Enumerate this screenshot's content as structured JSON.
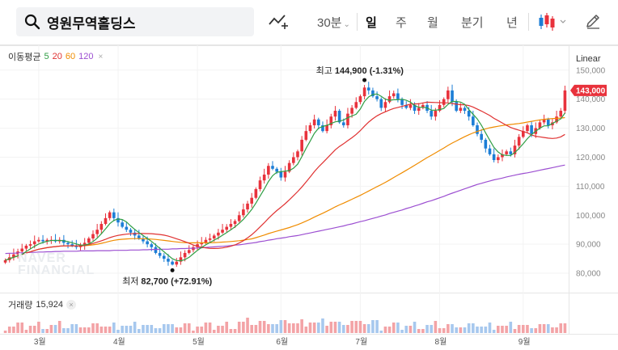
{
  "search": {
    "query": "영원무역홀딩스"
  },
  "toolbar": {
    "intervals": [
      {
        "label": "30분",
        "caret": "⌄"
      },
      {
        "label": "일"
      },
      {
        "label": "주"
      },
      {
        "label": "월"
      },
      {
        "label": "분기"
      },
      {
        "label": "년"
      }
    ],
    "active_interval": "일"
  },
  "legend": {
    "ma_title": "이동평균",
    "ma_periods": [
      "5",
      "20",
      "60",
      "120"
    ],
    "close": "×",
    "volume_title": "거래량",
    "volume_value": "15,924",
    "scale": "Linear"
  },
  "watermark": [
    "NAVER",
    "FINANCIAL"
  ],
  "colors": {
    "up": "#e8323c",
    "down": "#1c7ed6",
    "ma5": "#2f9e44",
    "ma20": "#e03131",
    "ma60": "#f08c00",
    "ma120": "#9c4fd1",
    "vol_up": "#f3a3a6",
    "vol_down": "#a7c8ee",
    "price_badge": "#e8323c"
  },
  "chart_data": {
    "type": "candlestick",
    "y_axis": {
      "ticks": [
        "150,000",
        "140,000",
        "130,000",
        "120,000",
        "110,000",
        "100,000",
        "90,000",
        "80,000"
      ],
      "range": [
        75000,
        153000
      ]
    },
    "x_axis": {
      "ticks": [
        "3월",
        "4월",
        "5월",
        "6월",
        "7월",
        "8월",
        "9월"
      ]
    },
    "current_price": "143,000",
    "annotations": {
      "high": {
        "label": "최고",
        "value": "144,900",
        "change": "(-1.31%)"
      },
      "low": {
        "label": "최저",
        "value": "82,700",
        "change": "(+72.91%)"
      }
    },
    "closes": [
      84500,
      85500,
      86500,
      87500,
      88500,
      89500,
      90000,
      91000,
      91500,
      91000,
      91500,
      91500,
      91000,
      91500,
      90500,
      90000,
      89500,
      89000,
      89500,
      90500,
      92000,
      93500,
      95000,
      97000,
      99000,
      101000,
      99000,
      97500,
      96000,
      95000,
      94000,
      93000,
      92000,
      91000,
      90000,
      89000,
      87000,
      86000,
      85000,
      84000,
      83000,
      84000,
      85500,
      87000,
      88000,
      89000,
      90000,
      90500,
      91500,
      92000,
      93000,
      94000,
      95000,
      96000,
      97000,
      98000,
      100000,
      102000,
      104000,
      106000,
      109000,
      112000,
      114000,
      117000,
      116000,
      115000,
      113000,
      115000,
      118000,
      120000,
      122000,
      126000,
      129000,
      131000,
      133000,
      131000,
      129000,
      131000,
      134000,
      136000,
      132000,
      131000,
      135000,
      137000,
      139000,
      141000,
      144000,
      143000,
      141000,
      140000,
      137000,
      139000,
      141000,
      142000,
      140000,
      138000,
      137000,
      138000,
      136000,
      137000,
      138000,
      136000,
      134000,
      136000,
      138000,
      140000,
      143000,
      139000,
      136000,
      137000,
      136000,
      134000,
      131000,
      128000,
      126000,
      123000,
      121000,
      119000,
      120000,
      121000,
      122000,
      121000,
      124000,
      127000,
      129000,
      131000,
      128000,
      130000,
      132000,
      133000,
      131000,
      132000,
      134000,
      136000,
      143000
    ],
    "ma120": [
      86800,
      86900,
      86900,
      87000,
      87000,
      87100,
      87200,
      87200,
      87300,
      87300,
      87400,
      87400,
      87500,
      87500,
      87600,
      87600,
      87600,
      87600,
      87700,
      87700,
      87700,
      87700,
      87800,
      87800,
      87800,
      87800,
      87900,
      87900,
      87900,
      87900,
      88000,
      88000,
      88000,
      88100,
      88100,
      88200,
      88200,
      88300,
      88300,
      88300,
      88400,
      88400,
      88500,
      88500,
      88600,
      88600,
      88700,
      88800,
      88900,
      89000,
      89100,
      89200,
      89300,
      89400,
      89500,
      89700,
      89800,
      90000,
      90200,
      90400,
      90600,
      90900,
      91100,
      91400,
      91600,
      91900,
      92100,
      92300,
      92600,
      92800,
      93000,
      93300,
      93600,
      93900,
      94200,
      94500,
      94800,
      95100,
      95400,
      95700,
      96000,
      96300,
      96700,
      97000,
      97400,
      97800,
      98100,
      98500,
      98900,
      99300,
      99700,
      100100,
      100600,
      101000,
      101400,
      101800,
      102300,
      102700,
      103200,
      103600,
      104100,
      104600,
      105000,
      105500,
      106000,
      106500,
      107100,
      107600,
      108100,
      108600,
      109100,
      109600,
      110100,
      110600,
      111000,
      111400,
      111800,
      112200,
      112500,
      112800,
      113200,
      113500,
      113800,
      114100,
      114400,
      114600,
      114900,
      115200,
      115500,
      115800,
      116100,
      116400,
      116700,
      117000,
      117300
    ]
  }
}
